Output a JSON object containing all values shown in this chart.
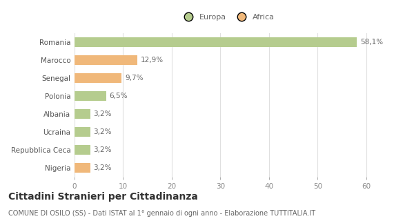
{
  "categories": [
    "Romania",
    "Marocco",
    "Senegal",
    "Polonia",
    "Albania",
    "Ucraina",
    "Repubblica Ceca",
    "Nigeria"
  ],
  "values": [
    58.1,
    12.9,
    9.7,
    6.5,
    3.2,
    3.2,
    3.2,
    3.2
  ],
  "labels": [
    "58,1%",
    "12,9%",
    "9,7%",
    "6,5%",
    "3,2%",
    "3,2%",
    "3,2%",
    "3,2%"
  ],
  "colors": [
    "#b5cc8e",
    "#f0b87a",
    "#f0b87a",
    "#b5cc8e",
    "#b5cc8e",
    "#b5cc8e",
    "#b5cc8e",
    "#f0b87a"
  ],
  "legend_labels": [
    "Europa",
    "Africa"
  ],
  "legend_colors": [
    "#b5cc8e",
    "#f0b87a"
  ],
  "xlim": [
    0,
    63
  ],
  "xticks": [
    0,
    10,
    20,
    30,
    40,
    50,
    60
  ],
  "title": "Cittadini Stranieri per Cittadinanza",
  "subtitle": "COMUNE DI OSILO (SS) - Dati ISTAT al 1° gennaio di ogni anno - Elaborazione TUTTITALIA.IT",
  "background_color": "#ffffff",
  "bar_height": 0.55,
  "grid_color": "#e0e0e0",
  "label_fontsize": 7.5,
  "ytick_fontsize": 7.5,
  "xtick_fontsize": 7.5,
  "title_fontsize": 10,
  "subtitle_fontsize": 7,
  "legend_fontsize": 8
}
